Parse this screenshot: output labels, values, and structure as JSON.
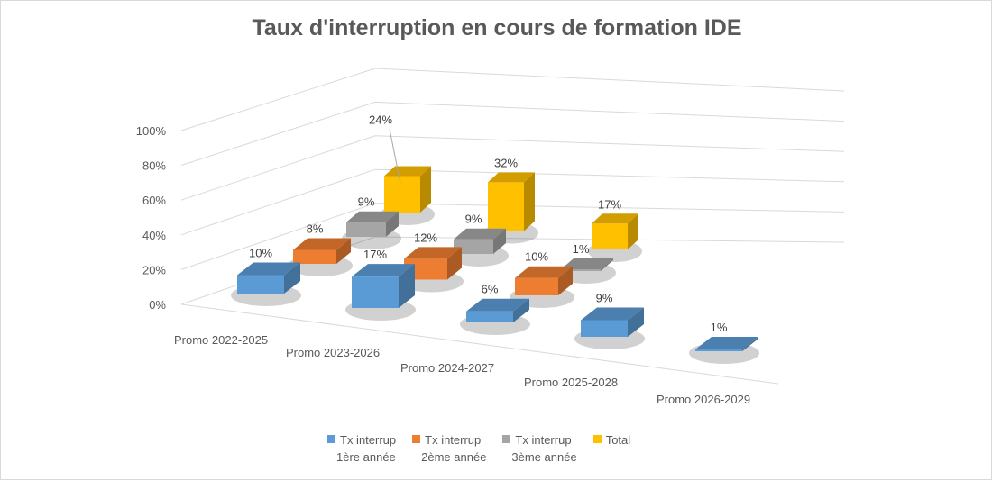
{
  "chart_data": {
    "type": "bar3d",
    "title": "Taux d'interruption en cours de formation IDE",
    "categories": [
      "Promo 2022-2025",
      "Promo 2023-2026",
      "Promo 2024-2027",
      "Promo 2025-2028",
      "Promo 2026-2029"
    ],
    "ylim": [
      0,
      100
    ],
    "yticks": [
      "0%",
      "20%",
      "40%",
      "60%",
      "80%",
      "100%"
    ],
    "grid": true,
    "legend_position": "bottom",
    "series": [
      {
        "name": "Tx interrup 1ère année",
        "name_lines": [
          "Tx interrup",
          "1ère année"
        ],
        "color": "#5b9bd5",
        "values": [
          10,
          17,
          6,
          9,
          1
        ]
      },
      {
        "name": "Tx interrup 2ème année",
        "name_lines": [
          "Tx interrup",
          "2ème année"
        ],
        "color": "#ed7d31",
        "values": [
          8,
          12,
          10,
          null,
          null
        ]
      },
      {
        "name": "Tx interrup 3ème année",
        "name_lines": [
          "Tx interrup",
          "3ème année"
        ],
        "color": "#a5a5a5",
        "values": [
          9,
          9,
          1,
          null,
          null
        ]
      },
      {
        "name": "Total",
        "name_lines": [
          "Total",
          ""
        ],
        "color": "#ffc000",
        "values": [
          24,
          32,
          17,
          null,
          null
        ]
      }
    ],
    "data_labels": [
      [
        "10%",
        "17%",
        "6%",
        "9%",
        "1%"
      ],
      [
        "8%",
        "12%",
        "10%",
        "",
        ""
      ],
      [
        "9%",
        "9%",
        "1%",
        "",
        ""
      ],
      [
        "24%",
        "32%",
        "17%",
        "",
        ""
      ]
    ]
  }
}
